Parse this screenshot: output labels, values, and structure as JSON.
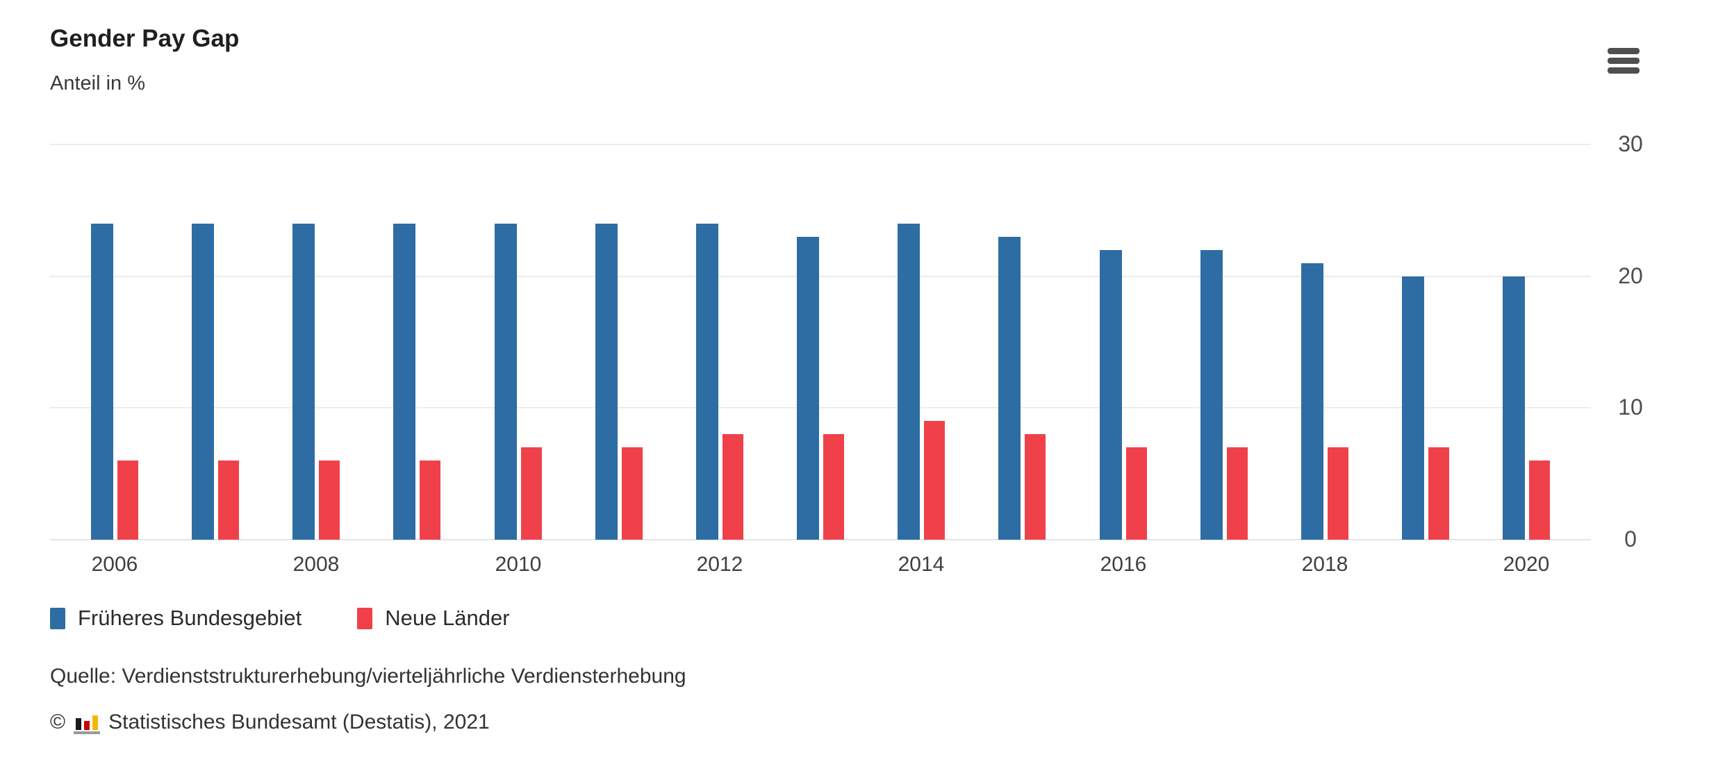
{
  "header": {
    "menu_icon": "hamburger-menu-icon"
  },
  "chart_data": {
    "type": "bar",
    "title": "Gender Pay Gap",
    "subtitle_unit": "Anteil in %",
    "categories": [
      "2006",
      "2007",
      "2008",
      "2009",
      "2010",
      "2011",
      "2012",
      "2013",
      "2014",
      "2015",
      "2016",
      "2017",
      "2018",
      "2019",
      "2020"
    ],
    "x_tick_labels": [
      "2006",
      "2008",
      "2010",
      "2012",
      "2014",
      "2016",
      "2018",
      "2020"
    ],
    "series": [
      {
        "name": "Früheres Bundesgebiet",
        "color": "#2e6da4",
        "values": [
          24,
          24,
          24,
          24,
          24,
          24,
          24,
          23,
          24,
          23,
          22,
          22,
          21,
          20,
          20
        ]
      },
      {
        "name": "Neue Länder",
        "color": "#f0414b",
        "values": [
          6,
          6,
          6,
          6,
          7,
          7,
          8,
          8,
          9,
          8,
          7,
          7,
          7,
          7,
          6
        ]
      }
    ],
    "ylim": [
      0,
      30
    ],
    "yticks": [
      0,
      10,
      20,
      30
    ],
    "grid": "horizontal",
    "y_axis_side": "right",
    "legend_position": "bottom-left"
  },
  "footer": {
    "source_line": "Quelle: Verdienststrukturerhebung/vierteljährliche Verdiensterhebung",
    "copyright_symbol": "©",
    "copyright_text": "Statistisches Bundesamt (Destatis), 2021",
    "logo_icon": "destatis-bars-logo-icon"
  }
}
